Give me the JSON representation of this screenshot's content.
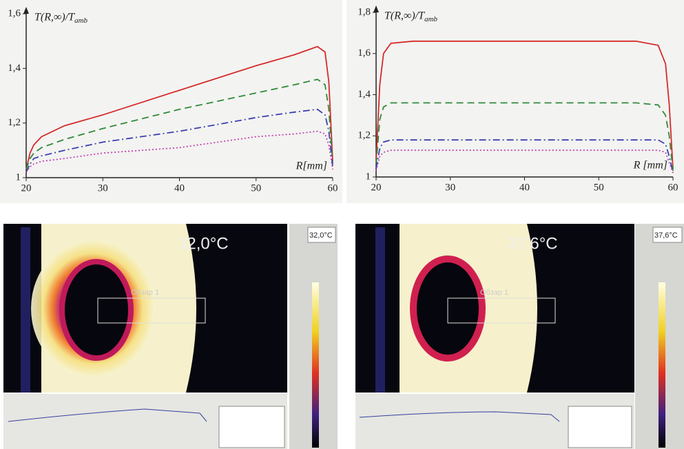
{
  "chart_data": [
    {
      "type": "line",
      "ylabel": "T(R,∞)/T",
      "ylabel_sub": "amb",
      "xlabel": "R[mm]",
      "x": [
        20,
        20.5,
        21,
        22,
        25,
        30,
        40,
        50,
        55,
        58,
        59,
        59.5,
        60
      ],
      "xlim": [
        20,
        60
      ],
      "xticks": [
        20,
        30,
        40,
        50,
        60
      ],
      "ylim": [
        1,
        1.6
      ],
      "yticks": [
        1,
        {
          "value": 1.2,
          "label": "1,2"
        },
        {
          "value": 1.4,
          "label": "1,4"
        },
        {
          "value": 1.6,
          "label": "1,6"
        }
      ],
      "series": [
        {
          "color": "#d42a2a",
          "linestyle": "solid",
          "values": [
            1.03,
            1.09,
            1.12,
            1.15,
            1.19,
            1.23,
            1.32,
            1.41,
            1.45,
            1.48,
            1.46,
            1.35,
            1.06
          ]
        },
        {
          "color": "#2f8a3a",
          "linestyle": "dashed",
          "values": [
            1.03,
            1.07,
            1.09,
            1.11,
            1.14,
            1.18,
            1.25,
            1.31,
            1.34,
            1.36,
            1.34,
            1.25,
            1.05
          ]
        },
        {
          "color": "#3a3fb0",
          "linestyle": "dashdot",
          "values": [
            1.02,
            1.05,
            1.07,
            1.08,
            1.1,
            1.13,
            1.17,
            1.22,
            1.24,
            1.25,
            1.23,
            1.17,
            1.04
          ]
        },
        {
          "color": "#c040b0",
          "linestyle": "dotted",
          "values": [
            1.02,
            1.04,
            1.05,
            1.06,
            1.07,
            1.09,
            1.11,
            1.15,
            1.16,
            1.17,
            1.16,
            1.12,
            1.03
          ]
        }
      ]
    },
    {
      "type": "line",
      "ylabel": "T(R,∞)/T",
      "ylabel_sub": "amb",
      "xlabel": "R [mm]",
      "x": [
        20,
        20.5,
        21,
        22,
        25,
        30,
        40,
        50,
        55,
        58,
        59,
        59.5,
        60
      ],
      "xlim": [
        20,
        60
      ],
      "xticks": [
        20,
        30,
        40,
        50,
        60
      ],
      "ylim": [
        1,
        1.8
      ],
      "yticks": [
        1,
        {
          "value": 1.2,
          "label": "1,2"
        },
        {
          "value": 1.4,
          "label": "1,4"
        },
        {
          "value": 1.6,
          "label": "1,6"
        },
        {
          "value": 1.8,
          "label": "1,8"
        }
      ],
      "series": [
        {
          "color": "#d42a2a",
          "linestyle": "solid",
          "values": [
            1.08,
            1.45,
            1.6,
            1.65,
            1.66,
            1.66,
            1.66,
            1.66,
            1.66,
            1.64,
            1.55,
            1.35,
            1.04
          ]
        },
        {
          "color": "#2f8a3a",
          "linestyle": "dashed",
          "values": [
            1.06,
            1.28,
            1.34,
            1.36,
            1.36,
            1.36,
            1.36,
            1.36,
            1.36,
            1.35,
            1.3,
            1.2,
            1.03
          ]
        },
        {
          "color": "#3a3fb0",
          "linestyle": "dashdot",
          "values": [
            1.04,
            1.14,
            1.17,
            1.18,
            1.18,
            1.18,
            1.18,
            1.18,
            1.18,
            1.18,
            1.16,
            1.1,
            1.02
          ]
        },
        {
          "color": "#c040b0",
          "linestyle": "dotted",
          "values": [
            1.03,
            1.1,
            1.12,
            1.13,
            1.13,
            1.13,
            1.13,
            1.13,
            1.13,
            1.13,
            1.12,
            1.07,
            1.02
          ]
        }
      ]
    }
  ],
  "thermal_images": [
    {
      "temperature": "32,0°C",
      "region": "Обзар 1"
    },
    {
      "temperature": "37,6°C",
      "region": "Обзар 1"
    }
  ]
}
